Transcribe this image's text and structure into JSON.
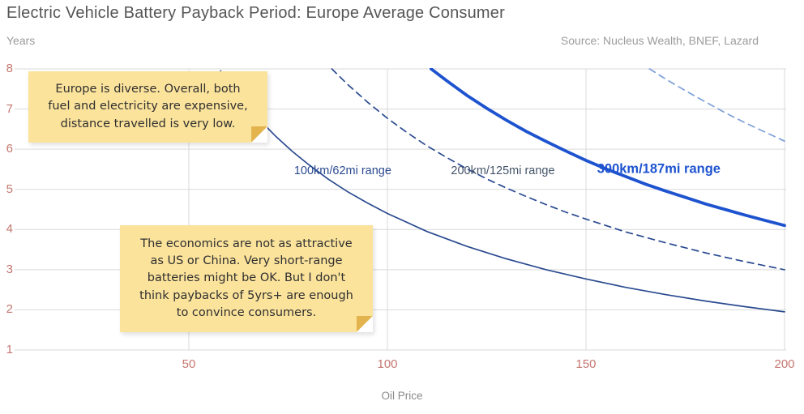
{
  "header": {
    "title": "Electric Vehicle Battery Payback Period: Europe Average Consumer",
    "y_axis_label": "Years",
    "source": "Source: Nucleus Wealth, BNEF, Lazard"
  },
  "notes": [
    {
      "text": "Europe is diverse. Overall, both\nfuel and electricity are expensive,\ndistance travelled is very low."
    },
    {
      "text": "The economics are not as attractive\nas US or China. Very short-range\nbatteries might be OK. But I don't\nthink paybacks of 5yrs+ are enough\nto convince consumers."
    }
  ],
  "chart_data": {
    "type": "line",
    "title": "Electric Vehicle Battery Payback Period: Europe Average Consumer",
    "xlabel": "Oil Price",
    "ylabel": "Years",
    "xlim": [
      25,
      200
    ],
    "ylim": [
      1,
      8
    ],
    "x_ticks": [
      50,
      100,
      150,
      200
    ],
    "y_ticks": [
      1,
      2,
      3,
      4,
      5,
      6,
      7,
      8
    ],
    "grid": true,
    "colors": {
      "grid": "#dadada",
      "tick_text": "#c4776f",
      "navy": "#2a4a90",
      "bright_blue": "#1e53cf",
      "light_blue": "#7d9fd9"
    },
    "series": [
      {
        "name": "100km/62mi range",
        "style": "solid",
        "width": 1.7,
        "color": "#2a4a90",
        "points": [
          [
            58,
            7.95
          ],
          [
            60,
            7.67
          ],
          [
            64,
            7.16
          ],
          [
            68,
            6.71
          ],
          [
            72,
            6.31
          ],
          [
            76,
            5.95
          ],
          [
            80,
            5.63
          ],
          [
            85,
            5.26
          ],
          [
            90,
            4.94
          ],
          [
            95,
            4.66
          ],
          [
            100,
            4.4
          ],
          [
            110,
            3.95
          ],
          [
            120,
            3.58
          ],
          [
            130,
            3.27
          ],
          [
            140,
            3.0
          ],
          [
            150,
            2.77
          ],
          [
            160,
            2.56
          ],
          [
            170,
            2.38
          ],
          [
            180,
            2.22
          ],
          [
            190,
            2.08
          ],
          [
            200,
            1.95
          ]
        ]
      },
      {
        "name": "200km/125mi range",
        "style": "dashed",
        "width": 1.7,
        "color": "#2a4a90",
        "points": [
          [
            86,
            8.0
          ],
          [
            90,
            7.61
          ],
          [
            95,
            7.17
          ],
          [
            100,
            6.77
          ],
          [
            105,
            6.41
          ],
          [
            110,
            6.08
          ],
          [
            115,
            5.79
          ],
          [
            120,
            5.51
          ],
          [
            125,
            5.26
          ],
          [
            130,
            5.03
          ],
          [
            135,
            4.82
          ],
          [
            140,
            4.62
          ],
          [
            145,
            4.43
          ],
          [
            150,
            4.26
          ],
          [
            160,
            3.94
          ],
          [
            170,
            3.67
          ],
          [
            180,
            3.42
          ],
          [
            190,
            3.2
          ],
          [
            200,
            3.0
          ]
        ]
      },
      {
        "name": "300km/187mi range",
        "style": "solid",
        "width": 3.8,
        "color": "#1e53cf",
        "points": [
          [
            111,
            8.0
          ],
          [
            115,
            7.7
          ],
          [
            120,
            7.34
          ],
          [
            125,
            7.02
          ],
          [
            130,
            6.72
          ],
          [
            135,
            6.44
          ],
          [
            140,
            6.19
          ],
          [
            145,
            5.95
          ],
          [
            150,
            5.72
          ],
          [
            155,
            5.51
          ],
          [
            160,
            5.32
          ],
          [
            165,
            5.13
          ],
          [
            170,
            4.96
          ],
          [
            175,
            4.8
          ],
          [
            180,
            4.64
          ],
          [
            185,
            4.5
          ],
          [
            190,
            4.36
          ],
          [
            195,
            4.23
          ],
          [
            200,
            4.1
          ]
        ]
      },
      {
        "name": "unlabeled",
        "style": "dashed",
        "width": 1.7,
        "color": "#7d9fd9",
        "points": [
          [
            166,
            8.0
          ],
          [
            170,
            7.75
          ],
          [
            175,
            7.46
          ],
          [
            180,
            7.18
          ],
          [
            185,
            6.91
          ],
          [
            190,
            6.66
          ],
          [
            195,
            6.43
          ],
          [
            200,
            6.2
          ]
        ]
      }
    ],
    "series_labels": [
      {
        "text": "100km/62mi range",
        "x": 76.5,
        "y": 5.46,
        "color": "#2a4a90",
        "bold": false,
        "size": 14.5
      },
      {
        "text": "200km/125mi range",
        "x": 116.0,
        "y": 5.46,
        "color": "#44546a",
        "bold": false,
        "size": 14.5
      },
      {
        "text": "300km/187mi range",
        "x": 152.8,
        "y": 5.5,
        "color": "#1e53cf",
        "bold": true,
        "size": 16.5
      }
    ],
    "legend": "inline-curve-labels"
  }
}
